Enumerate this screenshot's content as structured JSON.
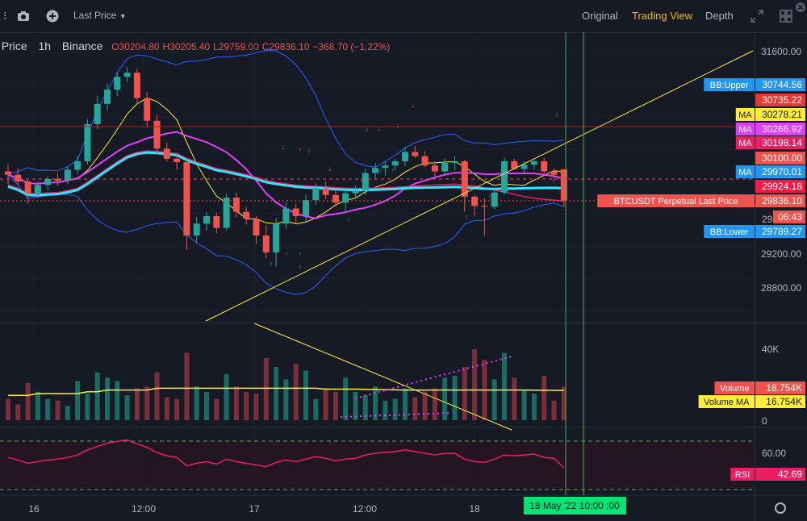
{
  "toolbar": {
    "price_type": "Last Price",
    "tabs": [
      "Original",
      "Trading View",
      "Depth"
    ],
    "active_tab": "Trading View"
  },
  "legend": {
    "symbol_label": "t Price",
    "interval": "1h",
    "exchange": "Binance",
    "open": "O30204.80",
    "high": "H30205.40",
    "low": "L29759.00",
    "close": "C29836.10",
    "change": "−368.70 (−1.22%)"
  },
  "colors": {
    "up": "#26a69a",
    "down": "#ef5350",
    "ma_cyan": "#2ee6ff",
    "ma_magenta": "#e040fb",
    "ma_crimson": "#e91e63",
    "ma_yellow": "#ffeb3b",
    "bb": "#2962ff",
    "rsi": "#e91e63"
  },
  "chart_data": [
    {
      "type": "candlestick",
      "title": "BTCUSDT Perpetual 1h",
      "yaxis_ticks": [
        31600,
        29200,
        28800
      ],
      "ylim": [
        28550,
        31800
      ],
      "candles": [
        [
          30180,
          30260,
          30030,
          30140
        ],
        [
          30140,
          30220,
          30010,
          30060
        ],
        [
          30060,
          30080,
          29800,
          29920
        ],
        [
          29920,
          30060,
          29880,
          30020
        ],
        [
          30020,
          30120,
          29950,
          30090
        ],
        [
          30090,
          30160,
          30010,
          30070
        ],
        [
          30070,
          30240,
          30030,
          30200
        ],
        [
          30200,
          30360,
          30150,
          30300
        ],
        [
          30300,
          30800,
          30260,
          30740
        ],
        [
          30740,
          31080,
          30680,
          30980
        ],
        [
          30980,
          31220,
          30900,
          31150
        ],
        [
          31150,
          31360,
          31070,
          31300
        ],
        [
          31300,
          31420,
          31240,
          31350
        ],
        [
          31350,
          31400,
          30980,
          31050
        ],
        [
          31050,
          31120,
          30700,
          30780
        ],
        [
          30780,
          30850,
          30380,
          30450
        ],
        [
          30450,
          30520,
          30300,
          30330
        ],
        [
          30330,
          30400,
          30200,
          30290
        ],
        [
          30290,
          30330,
          29250,
          29420
        ],
        [
          29420,
          29640,
          29330,
          29560
        ],
        [
          29560,
          29700,
          29480,
          29650
        ],
        [
          29650,
          29690,
          29450,
          29510
        ],
        [
          29510,
          29920,
          29480,
          29870
        ],
        [
          29870,
          29930,
          29640,
          29700
        ],
        [
          29700,
          29760,
          29550,
          29620
        ],
        [
          29620,
          29650,
          29320,
          29420
        ],
        [
          29420,
          29540,
          29150,
          29220
        ],
        [
          29220,
          29630,
          29050,
          29560
        ],
        [
          29560,
          29820,
          29500,
          29740
        ],
        [
          29740,
          29800,
          29560,
          29650
        ],
        [
          29650,
          29900,
          29580,
          29840
        ],
        [
          29840,
          30040,
          29780,
          29980
        ],
        [
          29980,
          30060,
          29850,
          29900
        ],
        [
          29900,
          29970,
          29760,
          29810
        ],
        [
          29810,
          29970,
          29700,
          29920
        ],
        [
          29920,
          30010,
          29880,
          29950
        ],
        [
          29950,
          30210,
          29900,
          30160
        ],
        [
          30160,
          30280,
          30090,
          30220
        ],
        [
          30220,
          30300,
          30130,
          30250
        ],
        [
          30250,
          30330,
          30190,
          30300
        ],
        [
          30300,
          30470,
          30240,
          30410
        ],
        [
          30410,
          30480,
          30340,
          30360
        ],
        [
          30360,
          30420,
          30230,
          30250
        ],
        [
          30250,
          30300,
          30120,
          30180
        ],
        [
          30180,
          30330,
          30140,
          30280
        ],
        [
          30280,
          30360,
          30190,
          30300
        ],
        [
          30300,
          30320,
          29700,
          29880
        ],
        [
          29880,
          29900,
          29650,
          29770
        ],
        [
          29770,
          29860,
          29420,
          29760
        ],
        [
          29760,
          29980,
          29730,
          29930
        ],
        [
          29930,
          30340,
          29900,
          30300
        ],
        [
          30300,
          30330,
          30200,
          30210
        ],
        [
          30210,
          30300,
          30160,
          30260
        ],
        [
          30260,
          30320,
          30200,
          30300
        ],
        [
          30300,
          30340,
          30120,
          30180
        ],
        [
          30180,
          30210,
          30060,
          30140
        ],
        [
          30204.8,
          30205.4,
          29759,
          29836.1
        ]
      ],
      "volume": {
        "label": "Volume",
        "value_label": "18.754K",
        "ma_label": "Volume MA",
        "ma_value_label": "16.754K",
        "axis_ticks": [
          "40K",
          "0"
        ],
        "values": [
          12,
          9,
          21,
          16,
          12,
          11,
          8,
          22,
          15,
          27,
          24,
          22,
          14,
          18,
          19,
          27,
          13,
          12,
          38,
          19,
          16,
          12,
          26,
          19,
          16,
          15,
          35,
          30,
          23,
          32,
          28,
          12,
          18,
          16,
          24,
          16,
          14,
          19,
          11,
          12,
          18,
          13,
          16,
          18,
          24,
          25,
          30,
          40,
          34,
          23,
          38,
          24,
          17,
          15,
          25,
          11,
          18.754
        ],
        "ma": [
          14,
          14,
          14,
          15,
          15,
          15,
          15,
          15,
          16,
          16,
          17,
          17,
          17,
          17,
          17,
          18,
          18,
          18,
          18,
          18,
          18,
          18,
          18,
          18,
          18,
          18,
          18,
          18,
          18,
          18,
          18,
          18,
          17.5,
          17.5,
          17.5,
          17.5,
          17.4,
          17.3,
          17.2,
          17.1,
          17,
          17,
          17,
          17,
          17,
          17,
          17,
          17,
          17,
          17,
          17,
          17,
          17,
          16.9,
          16.8,
          16.8,
          16.754
        ]
      },
      "rsi": {
        "label": "RSI",
        "value_label": "42.69",
        "axis_tick": "60.00",
        "values": [
          55,
          52,
          48,
          50,
          52,
          53,
          55,
          58,
          64,
          68,
          72,
          74,
          76,
          71,
          67,
          61,
          57,
          55,
          45,
          48,
          50,
          47,
          53,
          50,
          48,
          46,
          44,
          49,
          52,
          50,
          53,
          56,
          54,
          51,
          53,
          54,
          58,
          60,
          61,
          62,
          64,
          62,
          60,
          58,
          60,
          60,
          53,
          50,
          49,
          53,
          58,
          57,
          58,
          59,
          55,
          54,
          42.69
        ]
      },
      "overlays": {
        "bb_upper": {
          "label": "BB:Upper",
          "value": "30744.56"
        },
        "bb_lower": {
          "label": "BB:Lower",
          "value": "29789.27"
        },
        "ma_yellow": {
          "label": "MA",
          "value": "30278.21"
        },
        "ma_magenta": {
          "label": "MA",
          "value": "30266.92"
        },
        "ma_crimson": {
          "label": "MA",
          "value": "30198.14"
        },
        "ma_cyan": {
          "label": "MA",
          "value": "29970.01"
        }
      },
      "price_labels": {
        "red_line": "30735.22",
        "price_30100": "30100.00",
        "dashed_red": "29924.18",
        "last_price_label": "BTCUSDT Perpetual Last Price",
        "last_price": "29836.10",
        "countdown": "06:43",
        "partial_tick": "29"
      },
      "x_labels": [
        "16",
        "12:00",
        "17",
        "12:00",
        "18"
      ],
      "crosshair_label": "18 May '22   10:00 :00"
    }
  ]
}
